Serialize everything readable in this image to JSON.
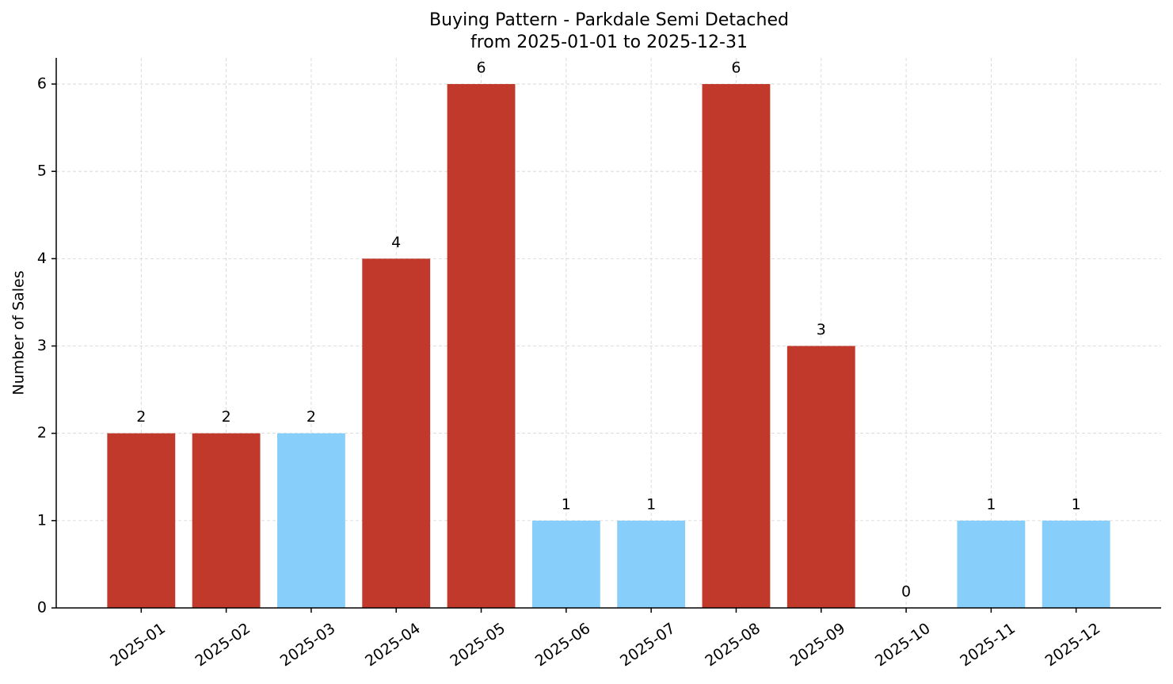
{
  "chart_data": {
    "type": "bar",
    "title": "Buying Pattern - Parkdale Semi Detached",
    "subtitle": "from 2025-01-01 to 2025-12-31",
    "y_label": "Number of Sales",
    "categories": [
      "2025-01",
      "2025-02",
      "2025-03",
      "2025-04",
      "2025-05",
      "2025-06",
      "2025-07",
      "2025-08",
      "2025-09",
      "2025-10",
      "2025-11",
      "2025-12"
    ],
    "values": [
      2,
      2,
      2,
      4,
      6,
      1,
      1,
      6,
      3,
      0,
      1,
      1
    ],
    "colors": [
      "#c0392b",
      "#c0392b",
      "#87cefa",
      "#c0392b",
      "#c0392b",
      "#87cefa",
      "#87cefa",
      "#c0392b",
      "#c0392b",
      "#87cefa",
      "#87cefa",
      "#87cefa"
    ],
    "ylim": [
      0,
      6.3
    ],
    "yticks": [
      0,
      1,
      2,
      3,
      4,
      5,
      6
    ],
    "grid": true
  }
}
